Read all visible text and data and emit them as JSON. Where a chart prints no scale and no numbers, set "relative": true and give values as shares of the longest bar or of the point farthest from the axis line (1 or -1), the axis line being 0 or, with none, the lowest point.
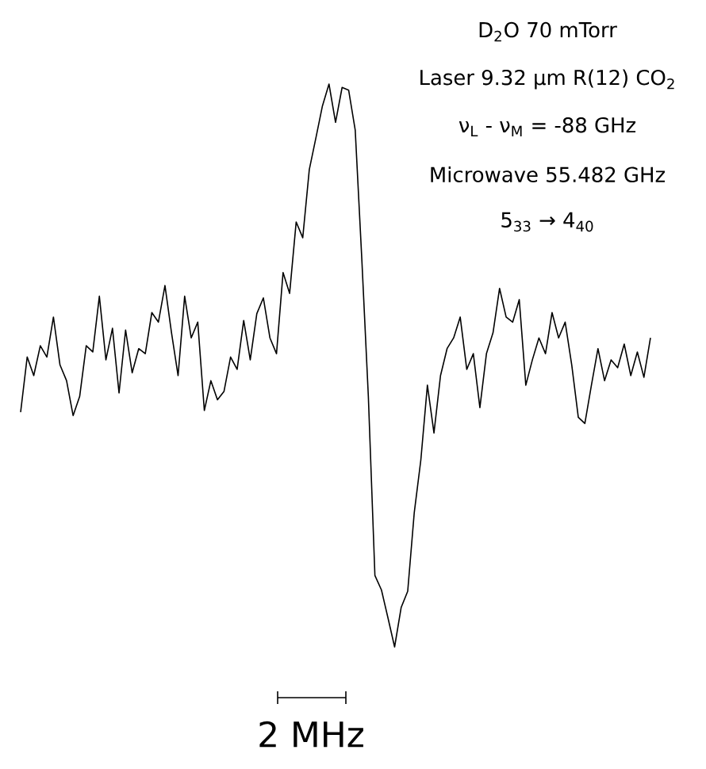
{
  "chart_data": {
    "type": "line",
    "relative": true,
    "annotations": [
      "D$_{2}$O  70 mTorr",
      "Laser  9.32 μm  R(12) CO$_{2}$",
      "ν$_{L}$ - ν$_{M}$ = -88 GHz",
      "Microwave  55.482 GHz",
      "5$_{33}$ → 4$_{40}$",
      "2 MHz"
    ],
    "categories": [
      null,
      null,
      null,
      null,
      null,
      null,
      null,
      null,
      null,
      null,
      null,
      null,
      null,
      null,
      null,
      null,
      null,
      null,
      null,
      null,
      null,
      null,
      null,
      null,
      null,
      null,
      null,
      null,
      null,
      null,
      null,
      null,
      null,
      null,
      null,
      null,
      null,
      null,
      null,
      null,
      null,
      null,
      null,
      null,
      null,
      null,
      null,
      null,
      null,
      null,
      null,
      null,
      null,
      null,
      null,
      null,
      null,
      null,
      null,
      null,
      null,
      null,
      null,
      null,
      null,
      null,
      null,
      null,
      null,
      null,
      null,
      null,
      null,
      null,
      null,
      null,
      null,
      null,
      null,
      null,
      null,
      null,
      null,
      null,
      null,
      null,
      null,
      null,
      null,
      null,
      null,
      null,
      null,
      null,
      null,
      null,
      null
    ],
    "series": [
      {
        "color": "#000000",
        "values": [
          0.417,
          0.515,
          0.482,
          0.535,
          0.515,
          0.586,
          0.501,
          0.473,
          0.411,
          0.445,
          0.535,
          0.524,
          0.623,
          0.51,
          0.566,
          0.451,
          0.563,
          0.487,
          0.53,
          0.521,
          0.594,
          0.577,
          0.642,
          0.558,
          0.482,
          0.623,
          0.549,
          0.577,
          0.42,
          0.473,
          0.439,
          0.454,
          0.515,
          0.493,
          0.58,
          0.51,
          0.592,
          0.62,
          0.549,
          0.521,
          0.665,
          0.628,
          0.755,
          0.727,
          0.848,
          0.904,
          0.961,
          1,
          0.932,
          0.994,
          0.989,
          0.918,
          0.69,
          0.445,
          0.127,
          0.101,
          0.051,
          0,
          0.07,
          0.099,
          0.239,
          0.332,
          0.465,
          0.38,
          0.482,
          0.53,
          0.549,
          0.586,
          0.493,
          0.521,
          0.425,
          0.521,
          0.558,
          0.637,
          0.586,
          0.577,
          0.617,
          0.465,
          0.51,
          0.549,
          0.521,
          0.594,
          0.549,
          0.577,
          0.501,
          0.408,
          0.397,
          0.465,
          0.53,
          0.473,
          0.51,
          0.496,
          0.538,
          0.482,
          0.524,
          0.479,
          0.549
        ]
      }
    ]
  }
}
